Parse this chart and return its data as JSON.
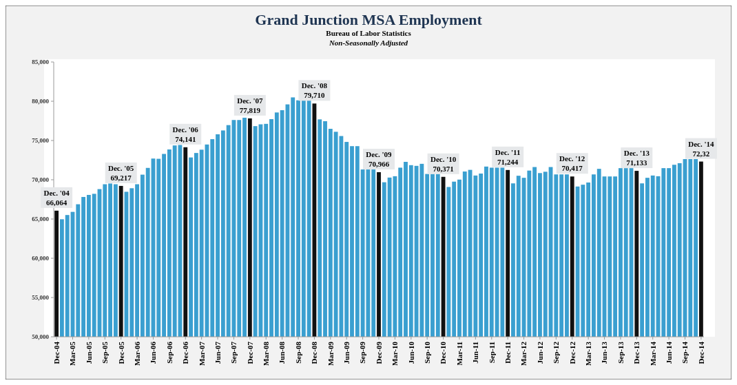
{
  "chart_data": {
    "type": "bar",
    "title": "Grand Junction MSA Employment",
    "subtitle": "Bureau of Labor Statistics\nNon-Seasonally Adjusted",
    "categories": [
      "Dec-04",
      null,
      null,
      "Mar-05",
      null,
      null,
      "Jun-05",
      null,
      null,
      "Sep-05",
      null,
      null,
      "Dec-05",
      null,
      null,
      "Mar-06",
      null,
      null,
      "Jun-06",
      null,
      null,
      "Sep-06",
      null,
      null,
      "Dec-06",
      null,
      null,
      "Mar-07",
      null,
      null,
      "Jun-07",
      null,
      null,
      "Sep-07",
      null,
      null,
      "Dec-07",
      null,
      null,
      "Mar-08",
      null,
      null,
      "Jun-08",
      null,
      null,
      "Sep-08",
      null,
      null,
      "Dec-08",
      null,
      null,
      "Mar-09",
      null,
      null,
      "Jun-09",
      null,
      null,
      "Sep-09",
      null,
      null,
      "Dec-09",
      null,
      null,
      "Mar-10",
      null,
      null,
      "Jun-10",
      null,
      null,
      "Sep-10",
      null,
      null,
      "Dec-10",
      null,
      null,
      "Mar-11",
      null,
      null,
      "Jun-11",
      null,
      null,
      "Sep-11",
      null,
      null,
      "Dec-11",
      null,
      null,
      "Mar-12",
      null,
      null,
      "Jun-12",
      null,
      null,
      "Sep-12",
      null,
      null,
      "Dec-12",
      null,
      null,
      "Mar-13",
      null,
      null,
      "Jun-13",
      null,
      null,
      "Sep-13",
      null,
      null,
      "Dec-13",
      null,
      null,
      "Mar-14",
      null,
      null,
      "Jun-14",
      null,
      null,
      "Sep-14",
      null,
      null,
      "Dec-14"
    ],
    "values": [
      66064,
      64970,
      65510,
      65910,
      66880,
      67810,
      68070,
      68210,
      68810,
      69430,
      69520,
      69430,
      69217,
      68470,
      68920,
      69430,
      70650,
      71510,
      72700,
      72670,
      73290,
      73860,
      74370,
      74430,
      74141,
      72840,
      73410,
      73830,
      74490,
      75170,
      75790,
      76280,
      76960,
      77610,
      77610,
      77900,
      77819,
      76830,
      77060,
      77120,
      77720,
      78570,
      78860,
      79600,
      80490,
      80120,
      80120,
      80120,
      79710,
      77690,
      77460,
      76490,
      76110,
      75570,
      74820,
      74280,
      74280,
      71310,
      71310,
      71310,
      70966,
      69680,
      70280,
      70450,
      71540,
      72280,
      71860,
      71770,
      72030,
      70740,
      70740,
      70740,
      70371,
      69080,
      69760,
      70020,
      71050,
      71260,
      70540,
      70790,
      71680,
      71540,
      71540,
      71540,
      71244,
      69540,
      70510,
      70250,
      71170,
      71620,
      70850,
      71020,
      71620,
      70680,
      70680,
      70680,
      70417,
      69140,
      69370,
      69650,
      70680,
      71390,
      70420,
      70420,
      70420,
      71480,
      71480,
      71480,
      71133,
      69540,
      70250,
      70540,
      70450,
      71480,
      71480,
      71910,
      72110,
      72630,
      72630,
      72630,
      72320
    ],
    "colors": [
      "#111111",
      "#3a9fd0",
      "#3a9fd0",
      "#3a9fd0",
      "#3a9fd0",
      "#3a9fd0",
      "#3a9fd0",
      "#3a9fd0",
      "#3a9fd0",
      "#3a9fd0",
      "#3a9fd0",
      "#3a9fd0",
      "#111111",
      "#3a9fd0",
      "#3a9fd0",
      "#3a9fd0",
      "#3a9fd0",
      "#3a9fd0",
      "#3a9fd0",
      "#3a9fd0",
      "#3a9fd0",
      "#3a9fd0",
      "#3a9fd0",
      "#3a9fd0",
      "#111111",
      "#3a9fd0",
      "#3a9fd0",
      "#3a9fd0",
      "#3a9fd0",
      "#3a9fd0",
      "#3a9fd0",
      "#3a9fd0",
      "#3a9fd0",
      "#3a9fd0",
      "#3a9fd0",
      "#3a9fd0",
      "#111111",
      "#3a9fd0",
      "#3a9fd0",
      "#3a9fd0",
      "#3a9fd0",
      "#3a9fd0",
      "#3a9fd0",
      "#3a9fd0",
      "#3a9fd0",
      "#3a9fd0",
      "#3a9fd0",
      "#3a9fd0",
      "#111111",
      "#3a9fd0",
      "#3a9fd0",
      "#3a9fd0",
      "#3a9fd0",
      "#3a9fd0",
      "#3a9fd0",
      "#3a9fd0",
      "#3a9fd0",
      "#3a9fd0",
      "#3a9fd0",
      "#3a9fd0",
      "#111111",
      "#3a9fd0",
      "#3a9fd0",
      "#3a9fd0",
      "#3a9fd0",
      "#3a9fd0",
      "#3a9fd0",
      "#3a9fd0",
      "#3a9fd0",
      "#3a9fd0",
      "#3a9fd0",
      "#3a9fd0",
      "#111111",
      "#3a9fd0",
      "#3a9fd0",
      "#3a9fd0",
      "#3a9fd0",
      "#3a9fd0",
      "#3a9fd0",
      "#3a9fd0",
      "#3a9fd0",
      "#3a9fd0",
      "#3a9fd0",
      "#3a9fd0",
      "#111111",
      "#3a9fd0",
      "#3a9fd0",
      "#3a9fd0",
      "#3a9fd0",
      "#3a9fd0",
      "#3a9fd0",
      "#3a9fd0",
      "#3a9fd0",
      "#3a9fd0",
      "#3a9fd0",
      "#3a9fd0",
      "#111111",
      "#3a9fd0",
      "#3a9fd0",
      "#3a9fd0",
      "#3a9fd0",
      "#3a9fd0",
      "#3a9fd0",
      "#3a9fd0",
      "#3a9fd0",
      "#3a9fd0",
      "#3a9fd0",
      "#3a9fd0",
      "#111111",
      "#3a9fd0",
      "#3a9fd0",
      "#3a9fd0",
      "#3a9fd0",
      "#3a9fd0",
      "#3a9fd0",
      "#3a9fd0",
      "#3a9fd0",
      "#3a9fd0",
      "#3a9fd0",
      "#3a9fd0",
      "#111111"
    ],
    "value_labels": [
      "66,064",
      null,
      null,
      null,
      null,
      null,
      null,
      null,
      null,
      null,
      null,
      null,
      "69,217",
      null,
      null,
      null,
      null,
      null,
      null,
      null,
      null,
      null,
      null,
      null,
      "74,141",
      null,
      null,
      null,
      null,
      null,
      null,
      null,
      null,
      null,
      null,
      null,
      "77,819",
      null,
      null,
      null,
      null,
      null,
      null,
      null,
      null,
      null,
      null,
      null,
      "79,710",
      null,
      null,
      null,
      null,
      null,
      null,
      null,
      null,
      null,
      null,
      null,
      "70,966",
      null,
      null,
      null,
      null,
      null,
      null,
      null,
      null,
      null,
      null,
      null,
      "70,371",
      null,
      null,
      null,
      null,
      null,
      null,
      null,
      null,
      null,
      null,
      null,
      "71,244",
      null,
      null,
      null,
      null,
      null,
      null,
      null,
      null,
      null,
      null,
      null,
      "70,417",
      null,
      null,
      null,
      null,
      null,
      null,
      null,
      null,
      null,
      null,
      null,
      "71,133",
      null,
      null,
      null,
      null,
      null,
      null,
      null,
      null,
      null,
      null,
      null,
      null
    ],
    "annotations": [
      {
        "text": "Dec. '04",
        "x": "Dec-04",
        "y": 66064
      },
      {
        "text": "Dec. '05",
        "x": "Dec-05",
        "y": 69217
      },
      {
        "text": "Dec. '06",
        "x": "Dec-06",
        "y": 74141
      },
      {
        "text": "Dec. '07",
        "x": "Dec-07",
        "y": 77819
      },
      {
        "text": "Dec. '08",
        "x": "Dec-08",
        "y": 79710
      },
      {
        "text": "Dec. '09",
        "x": "Dec-09",
        "y": 70966
      },
      {
        "text": "Dec. '10",
        "x": "Dec-10",
        "y": 70371
      },
      {
        "text": "Dec. '11",
        "x": "Dec-11",
        "y": 71244
      },
      {
        "text": "Dec. '12",
        "x": "Dec-12",
        "y": 70417
      },
      {
        "text": "Dec. '13",
        "x": "Dec-13",
        "y": 71133
      },
      {
        "text": "Dec. '14\n72,32",
        "x": "Dec-14",
        "y": 72320
      }
    ],
    "ylim": [
      50000,
      85000
    ],
    "yticks": [
      {
        "value": 50000,
        "label": "50,000"
      },
      {
        "value": 55000,
        "label": "55,000"
      },
      {
        "value": 60000,
        "label": "60,000"
      },
      {
        "value": 65000,
        "label": "65,000"
      },
      {
        "value": 70000,
        "label": "70,000"
      },
      {
        "value": 75000,
        "label": "75,000"
      },
      {
        "value": 80000,
        "label": "80,000"
      },
      {
        "value": 85000,
        "label": "85,000"
      }
    ],
    "grid": false
  }
}
